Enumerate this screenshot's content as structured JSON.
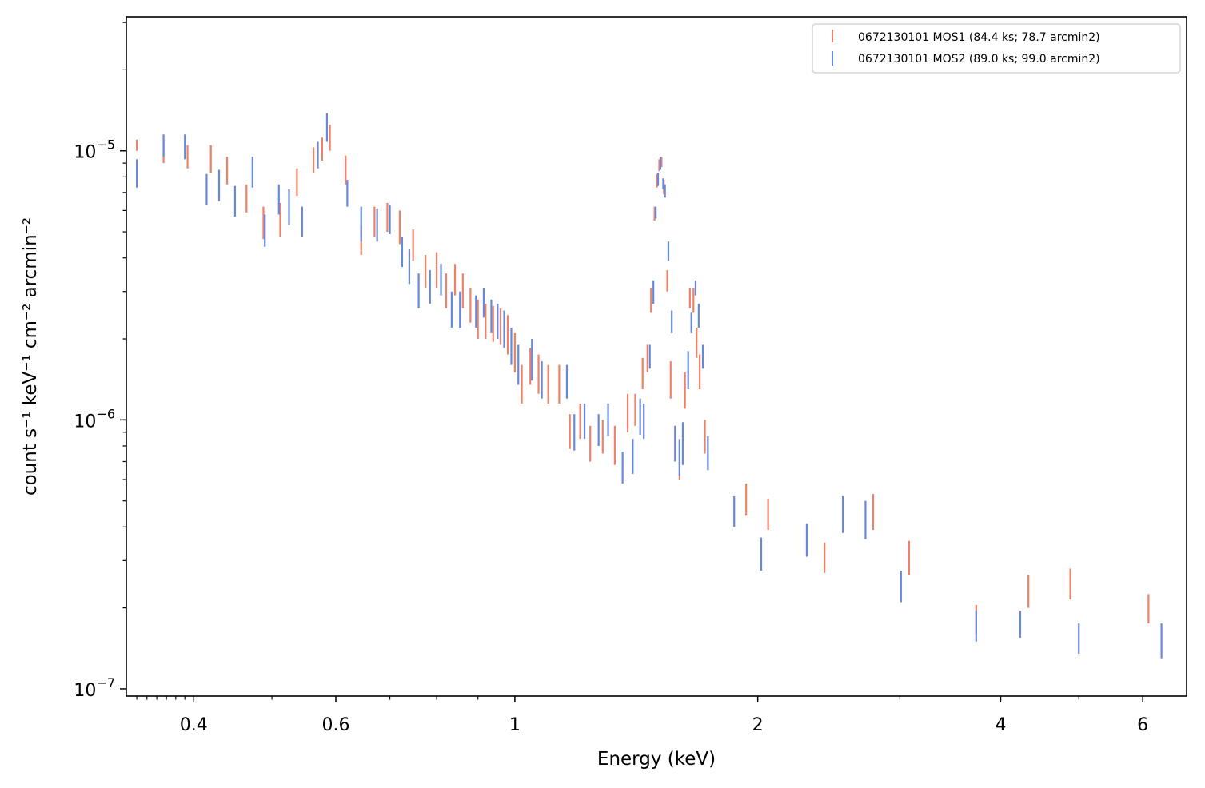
{
  "chart_data": {
    "type": "scatter",
    "style": "vertical error bars only",
    "title": "",
    "xlabel": "Energy (keV)",
    "ylabel": "count s⁻¹ keV⁻¹ cm⁻² arcmin⁻²",
    "xscale": "log",
    "yscale": "log",
    "xlim": [
      0.33,
      6.8
    ],
    "ylim": [
      9.4e-08,
      3.15e-05
    ],
    "grid": false,
    "legend_position": "top-right",
    "x_ticks": [
      {
        "value": 0.4,
        "label": "0.4"
      },
      {
        "value": 0.6,
        "label": "0.6"
      },
      {
        "value": 1,
        "label": "1"
      },
      {
        "value": 2,
        "label": "2"
      },
      {
        "value": 4,
        "label": "4"
      },
      {
        "value": 6,
        "label": "6"
      }
    ],
    "x_minor_ticks": [
      0.5,
      0.7,
      0.8,
      0.9,
      3,
      5
    ],
    "y_ticks": [
      {
        "value": 1e-07,
        "base": "10",
        "exp": "−7"
      },
      {
        "value": 1e-06,
        "base": "10",
        "exp": "−6"
      },
      {
        "value": 1e-05,
        "base": "10",
        "exp": "−5"
      }
    ],
    "y_minor_ticks": [
      2e-07,
      3e-07,
      4e-07,
      5e-07,
      6e-07,
      7e-07,
      8e-07,
      9e-07,
      2e-06,
      3e-06,
      4e-06,
      5e-06,
      6e-06,
      7e-06,
      8e-06,
      9e-06,
      2e-05,
      3e-05
    ],
    "series": [
      {
        "name": "0672130101 MOS1 (84.4 ks; 78.7 arcmin2)",
        "color": "#f08068",
        "points": [
          [
            0.34,
            1e-05,
            1.1e-05
          ],
          [
            0.367,
            9e-06,
            1.1e-05
          ],
          [
            0.393,
            8.6e-06,
            1.05e-05
          ],
          [
            0.42,
            8.3e-06,
            1.05e-05
          ],
          [
            0.44,
            7.5e-06,
            9.5e-06
          ],
          [
            0.465,
            5.9e-06,
            7.5e-06
          ],
          [
            0.488,
            4.7e-06,
            6.2e-06
          ],
          [
            0.512,
            4.8e-06,
            6.4e-06
          ],
          [
            0.537,
            6.8e-06,
            8.6e-06
          ],
          [
            0.563,
            8.3e-06,
            1.03e-05
          ],
          [
            0.577,
            9.2e-06,
            1.12e-05
          ],
          [
            0.59,
            1e-05,
            1.25e-05
          ],
          [
            0.617,
            7.5e-06,
            9.6e-06
          ],
          [
            0.645,
            4.1e-06,
            5.3e-06
          ],
          [
            0.67,
            4.8e-06,
            6.2e-06
          ],
          [
            0.695,
            5e-06,
            6.4e-06
          ],
          [
            0.72,
            4.5e-06,
            6e-06
          ],
          [
            0.748,
            3.9e-06,
            5.1e-06
          ],
          [
            0.775,
            3.1e-06,
            4.1e-06
          ],
          [
            0.8,
            3.1e-06,
            4.2e-06
          ],
          [
            0.822,
            2.6e-06,
            3.5e-06
          ],
          [
            0.843,
            2.9e-06,
            3.8e-06
          ],
          [
            0.862,
            2.6e-06,
            3.5e-06
          ],
          [
            0.881,
            2.3e-06,
            3.1e-06
          ],
          [
            0.9,
            2e-06,
            2.8e-06
          ],
          [
            0.92,
            2e-06,
            2.7e-06
          ],
          [
            0.94,
            1.95e-06,
            2.65e-06
          ],
          [
            0.96,
            1.9e-06,
            2.6e-06
          ],
          [
            0.98,
            1.75e-06,
            2.45e-06
          ],
          [
            1.0,
            1.5e-06,
            2.1e-06
          ],
          [
            1.02,
            1.15e-06,
            1.6e-06
          ],
          [
            1.045,
            1.35e-06,
            1.85e-06
          ],
          [
            1.07,
            1.25e-06,
            1.75e-06
          ],
          [
            1.1,
            1.15e-06,
            1.6e-06
          ],
          [
            1.135,
            1.15e-06,
            1.6e-06
          ],
          [
            1.17,
            7.8e-07,
            1.05e-06
          ],
          [
            1.205,
            8.5e-07,
            1.15e-06
          ],
          [
            1.24,
            7e-07,
            9.5e-07
          ],
          [
            1.285,
            7.5e-07,
            1e-06
          ],
          [
            1.33,
            6.8e-07,
            9.5e-07
          ],
          [
            1.38,
            9e-07,
            1.25e-06
          ],
          [
            1.41,
            9.5e-07,
            1.25e-06
          ],
          [
            1.44,
            1.3e-06,
            1.7e-06
          ],
          [
            1.46,
            1.5e-06,
            1.9e-06
          ],
          [
            1.475,
            2.5e-06,
            3.1e-06
          ],
          [
            1.49,
            5.5e-06,
            6.2e-06
          ],
          [
            1.5,
            7.3e-06,
            8.2e-06
          ],
          [
            1.51,
            8.4e-06,
            9.3e-06
          ],
          [
            1.52,
            8.7e-06,
            9.5e-06
          ],
          [
            1.53,
            6.9e-06,
            7.8e-06
          ],
          [
            1.545,
            3e-06,
            3.6e-06
          ],
          [
            1.56,
            1.2e-06,
            1.65e-06
          ],
          [
            1.58,
            7e-07,
            9.5e-07
          ],
          [
            1.6,
            6e-07,
            8.5e-07
          ],
          [
            1.625,
            1.1e-06,
            1.5e-06
          ],
          [
            1.648,
            2.6e-06,
            3.1e-06
          ],
          [
            1.665,
            2.5e-06,
            3.1e-06
          ],
          [
            1.68,
            1.7e-06,
            2.2e-06
          ],
          [
            1.695,
            1.3e-06,
            1.75e-06
          ],
          [
            1.72,
            7.5e-07,
            1e-06
          ],
          [
            1.935,
            4.4e-07,
            5.8e-07
          ],
          [
            2.06,
            3.9e-07,
            5.1e-07
          ],
          [
            2.42,
            2.7e-07,
            3.5e-07
          ],
          [
            2.78,
            3.9e-07,
            5.3e-07
          ],
          [
            3.08,
            2.65e-07,
            3.55e-07
          ],
          [
            3.73,
            1.6e-07,
            2.05e-07
          ],
          [
            4.33,
            2e-07,
            2.65e-07
          ],
          [
            4.88,
            2.15e-07,
            2.8e-07
          ],
          [
            6.1,
            1.75e-07,
            2.25e-07
          ]
        ]
      },
      {
        "name": "0672130101 MOS2 (89.0 ks; 99.0 arcmin2)",
        "color": "#6688dd",
        "points": [
          [
            0.34,
            7.3e-06,
            9.3e-06
          ],
          [
            0.367,
            9.5e-06,
            1.15e-05
          ],
          [
            0.39,
            9.3e-06,
            1.15e-05
          ],
          [
            0.415,
            6.3e-06,
            8.2e-06
          ],
          [
            0.43,
            6.5e-06,
            8.5e-06
          ],
          [
            0.45,
            5.7e-06,
            7.4e-06
          ],
          [
            0.473,
            7.3e-06,
            9.5e-06
          ],
          [
            0.49,
            4.4e-06,
            5.8e-06
          ],
          [
            0.51,
            5.8e-06,
            7.5e-06
          ],
          [
            0.525,
            5.3e-06,
            7.2e-06
          ],
          [
            0.545,
            4.8e-06,
            6.2e-06
          ],
          [
            0.57,
            8.6e-06,
            1.08e-05
          ],
          [
            0.585,
            1.08e-05,
            1.38e-05
          ],
          [
            0.62,
            6.2e-06,
            7.8e-06
          ],
          [
            0.645,
            4.6e-06,
            6.2e-06
          ],
          [
            0.675,
            4.6e-06,
            6.1e-06
          ],
          [
            0.7,
            4.9e-06,
            6.3e-06
          ],
          [
            0.725,
            3.7e-06,
            4.8e-06
          ],
          [
            0.74,
            3.2e-06,
            4.3e-06
          ],
          [
            0.76,
            2.6e-06,
            3.5e-06
          ],
          [
            0.785,
            2.7e-06,
            3.6e-06
          ],
          [
            0.81,
            2.9e-06,
            3.8e-06
          ],
          [
            0.835,
            2.2e-06,
            3e-06
          ],
          [
            0.855,
            2.2e-06,
            3e-06
          ],
          [
            0.895,
            2.2e-06,
            2.9e-06
          ],
          [
            0.915,
            2.4e-06,
            3.1e-06
          ],
          [
            0.935,
            2.1e-06,
            2.8e-06
          ],
          [
            0.952,
            2e-06,
            2.7e-06
          ],
          [
            0.97,
            1.85e-06,
            2.55e-06
          ],
          [
            0.99,
            1.6e-06,
            2.2e-06
          ],
          [
            1.01,
            1.35e-06,
            1.9e-06
          ],
          [
            1.05,
            1.4e-06,
            2e-06
          ],
          [
            1.08,
            1.2e-06,
            1.65e-06
          ],
          [
            1.16,
            1.2e-06,
            1.6e-06
          ],
          [
            1.185,
            7.7e-07,
            1.05e-06
          ],
          [
            1.22,
            8.5e-07,
            1.15e-06
          ],
          [
            1.27,
            8e-07,
            1.05e-06
          ],
          [
            1.305,
            8.7e-07,
            1.15e-06
          ],
          [
            1.36,
            5.8e-07,
            7.6e-07
          ],
          [
            1.4,
            6.3e-07,
            8.5e-07
          ],
          [
            1.43,
            8.8e-07,
            1.2e-06
          ],
          [
            1.445,
            8.5e-07,
            1.15e-06
          ],
          [
            1.47,
            1.55e-06,
            1.9e-06
          ],
          [
            1.485,
            2.7e-06,
            3.3e-06
          ],
          [
            1.495,
            5.6e-06,
            6.2e-06
          ],
          [
            1.505,
            7.4e-06,
            8.3e-06
          ],
          [
            1.515,
            8.5e-06,
            9.5e-06
          ],
          [
            1.527,
            7.2e-06,
            7.9e-06
          ],
          [
            1.535,
            6.7e-06,
            7.5e-06
          ],
          [
            1.55,
            3.9e-06,
            4.6e-06
          ],
          [
            1.565,
            2.1e-06,
            2.55e-06
          ],
          [
            1.58,
            7e-07,
            9.5e-07
          ],
          [
            1.6,
            6.2e-07,
            8.4e-07
          ],
          [
            1.615,
            6.8e-07,
            9.8e-07
          ],
          [
            1.64,
            1.3e-06,
            1.8e-06
          ],
          [
            1.655,
            2.1e-06,
            2.5e-06
          ],
          [
            1.675,
            2.9e-06,
            3.3e-06
          ],
          [
            1.69,
            2.2e-06,
            2.7e-06
          ],
          [
            1.71,
            1.55e-06,
            1.9e-06
          ],
          [
            1.735,
            6.5e-07,
            8.7e-07
          ],
          [
            1.87,
            4e-07,
            5.2e-07
          ],
          [
            2.02,
            2.75e-07,
            3.65e-07
          ],
          [
            2.3,
            3.1e-07,
            4.1e-07
          ],
          [
            2.55,
            3.8e-07,
            5.2e-07
          ],
          [
            2.72,
            3.6e-07,
            5e-07
          ],
          [
            3.01,
            2.1e-07,
            2.75e-07
          ],
          [
            3.73,
            1.5e-07,
            1.95e-07
          ],
          [
            4.23,
            1.55e-07,
            1.95e-07
          ],
          [
            5.0,
            1.35e-07,
            1.75e-07
          ],
          [
            6.33,
            1.3e-07,
            1.75e-07
          ]
        ]
      }
    ]
  }
}
